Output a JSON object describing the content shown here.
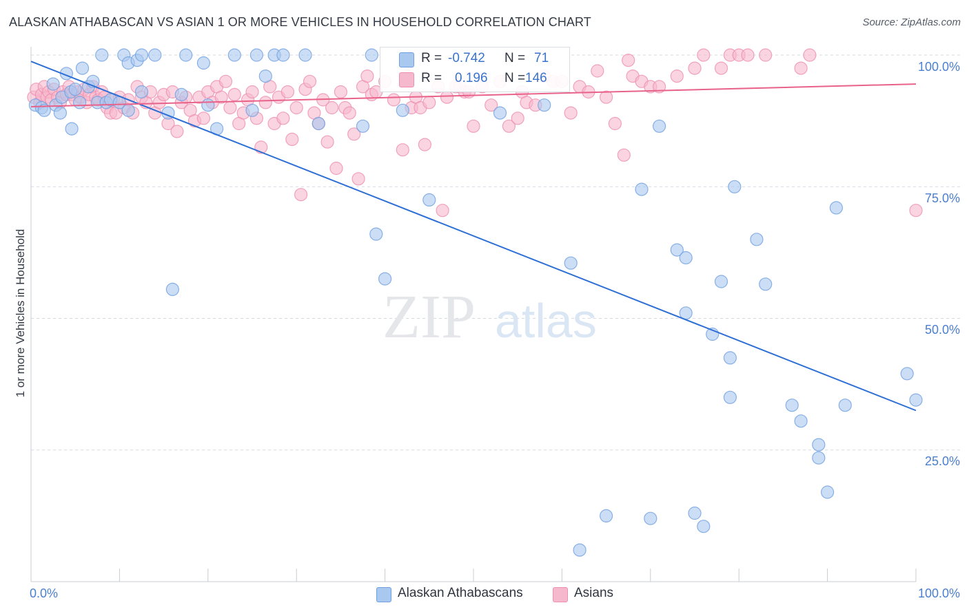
{
  "title": "ALASKAN ATHABASCAN VS ASIAN 1 OR MORE VEHICLES IN HOUSEHOLD CORRELATION CHART",
  "source": "Source: ZipAtlas.com",
  "watermark": "ZIPatlas",
  "colors": {
    "blue_fill": "#a9c8f0",
    "blue_stroke": "#6f9fe0",
    "blue_line": "#2e6fd6",
    "pink_fill": "#f6b8cc",
    "pink_stroke": "#ee8fae",
    "pink_line": "#e8628a",
    "grid": "#d5dae2",
    "tick_text": "#4a7fd0"
  },
  "legend": {
    "rows": [
      {
        "r_label": "R =",
        "r_value": "-0.742",
        "n_label": "N =",
        "n_value": "71"
      },
      {
        "r_label": "R =",
        "r_value": "0.196",
        "n_label": "N =",
        "n_value": "146"
      }
    ]
  },
  "bottom_legend": [
    "Alaskan Athabascans",
    "Asians"
  ],
  "chart_data": {
    "type": "scatter",
    "title": "ALASKAN ATHABASCAN VS ASIAN 1 OR MORE VEHICLES IN HOUSEHOLD CORRELATION CHART",
    "xlabel": "",
    "ylabel": "1 or more Vehicles in Household",
    "xlim": [
      0,
      100
    ],
    "ylim": [
      0,
      100
    ],
    "x_tick_labels": [
      "0.0%",
      "100.0%"
    ],
    "y_tick_labels": [
      "100.0%",
      "75.0%",
      "50.0%",
      "25.0%"
    ],
    "y_gridlines": [
      100,
      75,
      50,
      25
    ],
    "grid": true,
    "series": [
      {
        "name": "Alaskan Athabascans",
        "color": "blue",
        "trend": {
          "x": [
            0,
            100
          ],
          "y": [
            98.8,
            32.5
          ]
        },
        "points": [
          [
            0.5,
            90.5
          ],
          [
            1.2,
            90
          ],
          [
            1.5,
            89.5
          ],
          [
            2.5,
            94.5
          ],
          [
            2.8,
            90.5
          ],
          [
            3.3,
            89
          ],
          [
            3.5,
            92
          ],
          [
            4,
            96.5
          ],
          [
            4.5,
            93
          ],
          [
            4.6,
            86
          ],
          [
            5,
            93.5
          ],
          [
            5.5,
            91
          ],
          [
            5.8,
            97.5
          ],
          [
            6.5,
            94
          ],
          [
            7,
            95
          ],
          [
            7.5,
            91
          ],
          [
            8,
            100
          ],
          [
            8.5,
            91
          ],
          [
            9,
            91.5
          ],
          [
            10,
            91
          ],
          [
            10.5,
            100
          ],
          [
            11,
            89.5
          ],
          [
            11,
            98.5
          ],
          [
            12,
            99
          ],
          [
            12.5,
            93
          ],
          [
            12.5,
            100
          ],
          [
            14,
            100
          ],
          [
            15.5,
            89
          ],
          [
            16,
            55.5
          ],
          [
            17,
            92.5
          ],
          [
            17.5,
            100
          ],
          [
            19.5,
            98.5
          ],
          [
            20,
            90.5
          ],
          [
            21,
            86
          ],
          [
            23,
            100
          ],
          [
            25,
            89.5
          ],
          [
            25.5,
            100
          ],
          [
            26.5,
            96
          ],
          [
            27.5,
            100
          ],
          [
            28.5,
            100
          ],
          [
            31,
            100
          ],
          [
            32.5,
            87
          ],
          [
            37.5,
            86.5
          ],
          [
            38.5,
            100
          ],
          [
            39,
            66
          ],
          [
            40,
            57.5
          ],
          [
            42,
            89.5
          ],
          [
            45,
            72.5
          ],
          [
            53,
            89
          ],
          [
            58,
            90.5
          ],
          [
            61,
            60.5
          ],
          [
            62,
            6
          ],
          [
            65,
            12.5
          ],
          [
            69,
            74.5
          ],
          [
            70,
            12
          ],
          [
            71,
            86.5
          ],
          [
            73,
            63
          ],
          [
            74,
            61.5
          ],
          [
            74,
            51
          ],
          [
            75,
            13
          ],
          [
            76,
            10.5
          ],
          [
            77,
            47
          ],
          [
            78,
            57
          ],
          [
            79,
            35
          ],
          [
            79,
            42.5
          ],
          [
            79.5,
            75
          ],
          [
            82,
            65
          ],
          [
            83,
            56.5
          ],
          [
            86,
            33.5
          ],
          [
            87,
            30.5
          ],
          [
            89,
            26
          ],
          [
            89,
            23.5
          ],
          [
            90,
            17
          ],
          [
            91,
            71
          ],
          [
            92,
            33.5
          ],
          [
            99,
            39.5
          ],
          [
            100,
            34.5
          ]
        ]
      },
      {
        "name": "Asians",
        "color": "pink",
        "trend": {
          "x": [
            0,
            100
          ],
          "y": [
            90.2,
            94.5
          ]
        },
        "points": [
          [
            0.3,
            92
          ],
          [
            0.6,
            93.5
          ],
          [
            1,
            91
          ],
          [
            1.2,
            92.5
          ],
          [
            1.5,
            94
          ],
          [
            1.8,
            92
          ],
          [
            2,
            93
          ],
          [
            2.3,
            91.5
          ],
          [
            2.6,
            93.5
          ],
          [
            3,
            92
          ],
          [
            3.3,
            91
          ],
          [
            3.6,
            93
          ],
          [
            4,
            92.5
          ],
          [
            4.3,
            94
          ],
          [
            4.6,
            92.5
          ],
          [
            5,
            91.5
          ],
          [
            5.3,
            93
          ],
          [
            5.6,
            92
          ],
          [
            6,
            93.5
          ],
          [
            6.3,
            91
          ],
          [
            6.6,
            92.5
          ],
          [
            7,
            94
          ],
          [
            7.3,
            92
          ],
          [
            7.6,
            91.5
          ],
          [
            8,
            93
          ],
          [
            8.3,
            92
          ],
          [
            8.6,
            90
          ],
          [
            9,
            89
          ],
          [
            9.3,
            91.5
          ],
          [
            9.6,
            89
          ],
          [
            10,
            92
          ],
          [
            10.5,
            90
          ],
          [
            11,
            91.5
          ],
          [
            11.5,
            89
          ],
          [
            12,
            94
          ],
          [
            12.5,
            92
          ],
          [
            13,
            91
          ],
          [
            13.5,
            93
          ],
          [
            14,
            89
          ],
          [
            14.5,
            91
          ],
          [
            15,
            92.5
          ],
          [
            15.5,
            87
          ],
          [
            16,
            93
          ],
          [
            16.5,
            85.5
          ],
          [
            17,
            91
          ],
          [
            17.5,
            92
          ],
          [
            18,
            89.5
          ],
          [
            18.5,
            87.5
          ],
          [
            19,
            92
          ],
          [
            19.5,
            88
          ],
          [
            20,
            93
          ],
          [
            20.5,
            91
          ],
          [
            21,
            94
          ],
          [
            21.5,
            92
          ],
          [
            22,
            95
          ],
          [
            22.5,
            90
          ],
          [
            23,
            92.5
          ],
          [
            23.5,
            87
          ],
          [
            24,
            89
          ],
          [
            24.5,
            91.5
          ],
          [
            25,
            93
          ],
          [
            25.5,
            88
          ],
          [
            26,
            82.5
          ],
          [
            26.5,
            91
          ],
          [
            27,
            94
          ],
          [
            27.5,
            87
          ],
          [
            28,
            92
          ],
          [
            28.5,
            88
          ],
          [
            29,
            93
          ],
          [
            29.5,
            84
          ],
          [
            30,
            90
          ],
          [
            30.5,
            73.5
          ],
          [
            31,
            93.5
          ],
          [
            31.5,
            95
          ],
          [
            32,
            89
          ],
          [
            32.5,
            87
          ],
          [
            33,
            91.5
          ],
          [
            33.5,
            83.5
          ],
          [
            34,
            90
          ],
          [
            34.5,
            78.5
          ],
          [
            35,
            93
          ],
          [
            35.5,
            90
          ],
          [
            36,
            89
          ],
          [
            36.5,
            85
          ],
          [
            37,
            76.5
          ],
          [
            37.5,
            94
          ],
          [
            38,
            96
          ],
          [
            38.5,
            92.5
          ],
          [
            39,
            93
          ],
          [
            40,
            95
          ],
          [
            41,
            91.5
          ],
          [
            42,
            82
          ],
          [
            42.5,
            96
          ],
          [
            43,
            90
          ],
          [
            43.5,
            92
          ],
          [
            44,
            90
          ],
          [
            44.5,
            83
          ],
          [
            45,
            91
          ],
          [
            46,
            94
          ],
          [
            46.5,
            70.5
          ],
          [
            47,
            92
          ],
          [
            48,
            94
          ],
          [
            48.5,
            94
          ],
          [
            49,
            93
          ],
          [
            49.5,
            93
          ],
          [
            50,
            86.5
          ],
          [
            51,
            94
          ],
          [
            52,
            90.5
          ],
          [
            53,
            95
          ],
          [
            54,
            86.5
          ],
          [
            55,
            88
          ],
          [
            55.5,
            93
          ],
          [
            56,
            91
          ],
          [
            57,
            90.5
          ],
          [
            58,
            96
          ],
          [
            59,
            95
          ],
          [
            60,
            95
          ],
          [
            61,
            89
          ],
          [
            62,
            94
          ],
          [
            63,
            93
          ],
          [
            64,
            97
          ],
          [
            65,
            92
          ],
          [
            66,
            87
          ],
          [
            67,
            81
          ],
          [
            67.5,
            99
          ],
          [
            68,
            96
          ],
          [
            69,
            95
          ],
          [
            70,
            94
          ],
          [
            71,
            94
          ],
          [
            73,
            96
          ],
          [
            75,
            97.5
          ],
          [
            76,
            100
          ],
          [
            78,
            97.5
          ],
          [
            79,
            100
          ],
          [
            80,
            100
          ],
          [
            81,
            100
          ],
          [
            83,
            100
          ],
          [
            87,
            97.5
          ],
          [
            88,
            100
          ],
          [
            100,
            70.5
          ]
        ]
      }
    ]
  }
}
